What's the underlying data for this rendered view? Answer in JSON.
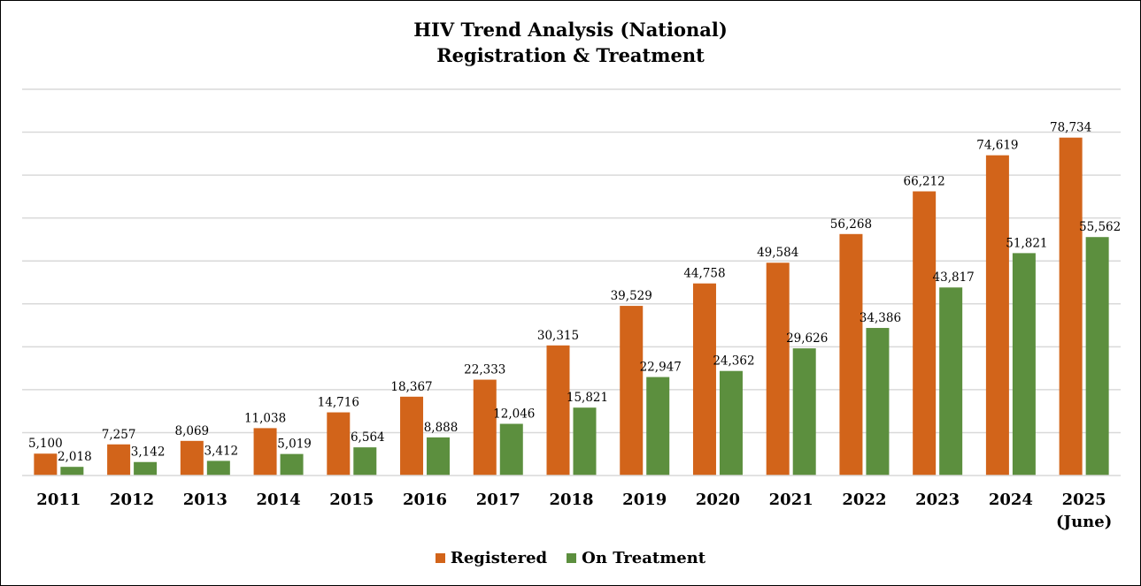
{
  "chart_data": {
    "type": "bar",
    "title": "HIV Trend Analysis (National)",
    "subtitle": "Registration & Treatment",
    "categories": [
      "2011",
      "2012",
      "2013",
      "2014",
      "2015",
      "2016",
      "2017",
      "2018",
      "2019",
      "2020",
      "2021",
      "2022",
      "2023",
      "2024",
      "2025"
    ],
    "category_sublabels": [
      "",
      "",
      "",
      "",
      "",
      "",
      "",
      "",
      "",
      "",
      "",
      "",
      "",
      "",
      "(June)"
    ],
    "series": [
      {
        "name": "Registered",
        "color": "#D2641A",
        "values": [
          5100,
          7257,
          8069,
          11038,
          14716,
          18367,
          22333,
          30315,
          39529,
          44758,
          49584,
          56268,
          66212,
          74619,
          78734
        ],
        "labels": [
          "5,100",
          "7,257",
          "8,069",
          "11,038",
          "14,716",
          "18,367",
          "22,333",
          "30,315",
          "39,529",
          "44,758",
          "49,584",
          "56,268",
          "66,212",
          "74,619",
          "78,734"
        ]
      },
      {
        "name": "On Treatment",
        "color": "#5C8F3E",
        "values": [
          2018,
          3142,
          3412,
          5019,
          6564,
          8888,
          12046,
          15821,
          22947,
          24362,
          29626,
          34386,
          43817,
          51821,
          55562
        ],
        "labels": [
          "2,018",
          "3,142",
          "3,412",
          "5,019",
          "6,564",
          "8,888",
          "12,046",
          "15,821",
          "22,947",
          "24,362",
          "29,626",
          "34,386",
          "43,817",
          "51,821",
          "55,562"
        ]
      }
    ],
    "ylim": [
      0,
      90000
    ],
    "gridlines": true,
    "legend_position": "bottom"
  }
}
